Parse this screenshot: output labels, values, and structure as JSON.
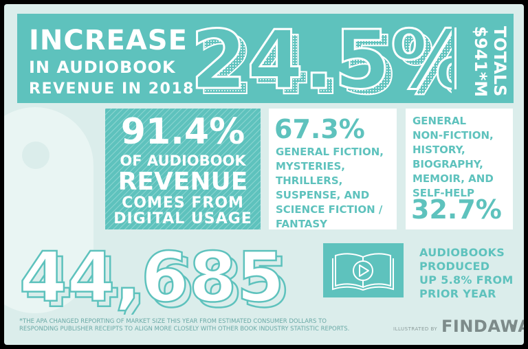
{
  "banner": {
    "title_line1": "INCREASE",
    "title_line2": "IN AUDIOBOOK",
    "title_line3": "REVENUE IN 2018",
    "big_value": "24.5%",
    "totals_line1": "TOTALS",
    "totals_line2": "$941*M"
  },
  "digital": {
    "pct": "91.4%",
    "line1": "OF AUDIOBOOK",
    "line2": "REVENUE",
    "line3": "COMES FROM",
    "line4": "DIGITAL USAGE"
  },
  "fiction": {
    "pct": "67.3%",
    "text": "GENERAL FICTION,\nMYSTERIES,\nTHRILLERS,\nSUSPENSE, AND\nSCIENCE FICTION /\nFANTASY"
  },
  "nonfiction": {
    "text": "GENERAL\nNON-FICTION,\nHISTORY,\nBIOGRAPHY,\nMEMOIR, AND\nSELF-HELP",
    "pct": "32.7%"
  },
  "produced": {
    "count": "44,685",
    "text": "AUDIOBOOKS\nPRODUCED\nUP 5.8% FROM\nPRIOR YEAR",
    "icon": "open-book-play-icon"
  },
  "footnote": {
    "star": "*",
    "text": "THE APA CHANGED REPORTING OF MARKET SIZE THIS YEAR FROM ESTIMATED CONSUMER DOLLARS TO\nRESPONDING PUBLISHER RECEIPTS TO ALIGN MORE CLOSELY WITH OTHER BOOK INDUSTRY STATISTIC REPORTS."
  },
  "credit": {
    "label": "ILLUSTRATED BY",
    "brand": "FINDAWAY"
  },
  "colors": {
    "teal": "#5ec2bd",
    "background": "#dbedeb",
    "white": "#ffffff",
    "grey": "#7d8b8a"
  }
}
